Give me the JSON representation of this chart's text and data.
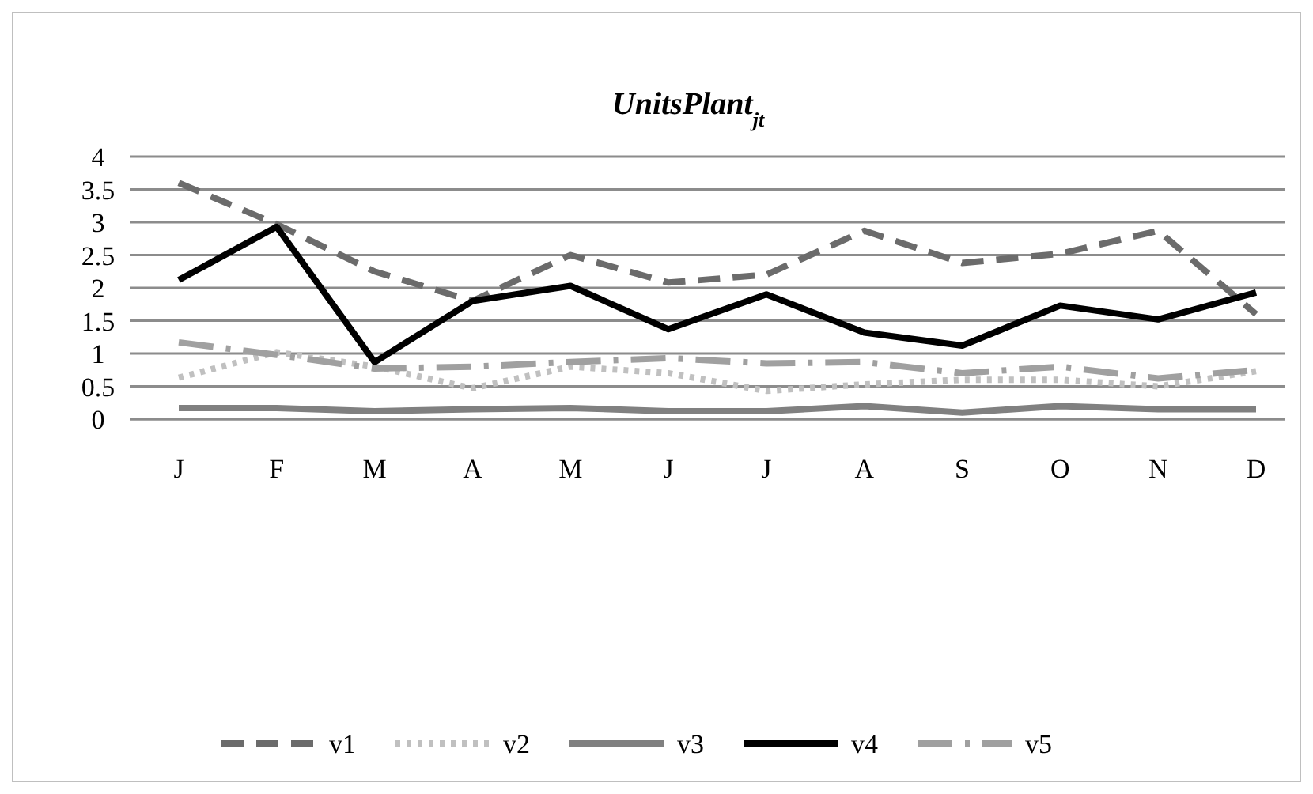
{
  "chart_data": {
    "type": "line",
    "title": "UnitsPlant$_{jt}$",
    "categories": [
      "J",
      "F",
      "M",
      "A",
      "M",
      "J",
      "J",
      "A",
      "S",
      "O",
      "N",
      "D"
    ],
    "ylim": [
      0,
      4
    ],
    "yticks": [
      0,
      0.5,
      1,
      1.5,
      2,
      2.5,
      3,
      3.5,
      4
    ],
    "grid": "y",
    "legend": "bottom",
    "series": [
      {
        "name": "v1",
        "color": "#6b6b6b",
        "line_style": "dashed",
        "values": [
          3.6,
          2.97,
          2.25,
          1.8,
          2.5,
          2.08,
          2.2,
          2.87,
          2.38,
          2.52,
          2.87,
          1.6
        ]
      },
      {
        "name": "v2",
        "color": "#c0c0c0",
        "line_style": "dotted",
        "values": [
          0.63,
          1.02,
          0.8,
          0.47,
          0.8,
          0.7,
          0.43,
          0.53,
          0.6,
          0.6,
          0.5,
          0.73
        ]
      },
      {
        "name": "v3",
        "color": "#808080",
        "line_style": "solid",
        "values": [
          0.17,
          0.17,
          0.12,
          0.15,
          0.17,
          0.12,
          0.12,
          0.2,
          0.1,
          0.2,
          0.15,
          0.15
        ]
      },
      {
        "name": "v4",
        "color": "#000000",
        "line_style": "solid",
        "values": [
          2.12,
          2.93,
          0.87,
          1.8,
          2.03,
          1.37,
          1.9,
          1.32,
          1.12,
          1.73,
          1.52,
          1.93
        ]
      },
      {
        "name": "v5",
        "color": "#a0a0a0",
        "line_style": "dashed",
        "values": [
          1.17,
          0.98,
          0.77,
          0.8,
          0.87,
          0.93,
          0.85,
          0.87,
          0.7,
          0.8,
          0.62,
          0.75
        ]
      }
    ]
  }
}
